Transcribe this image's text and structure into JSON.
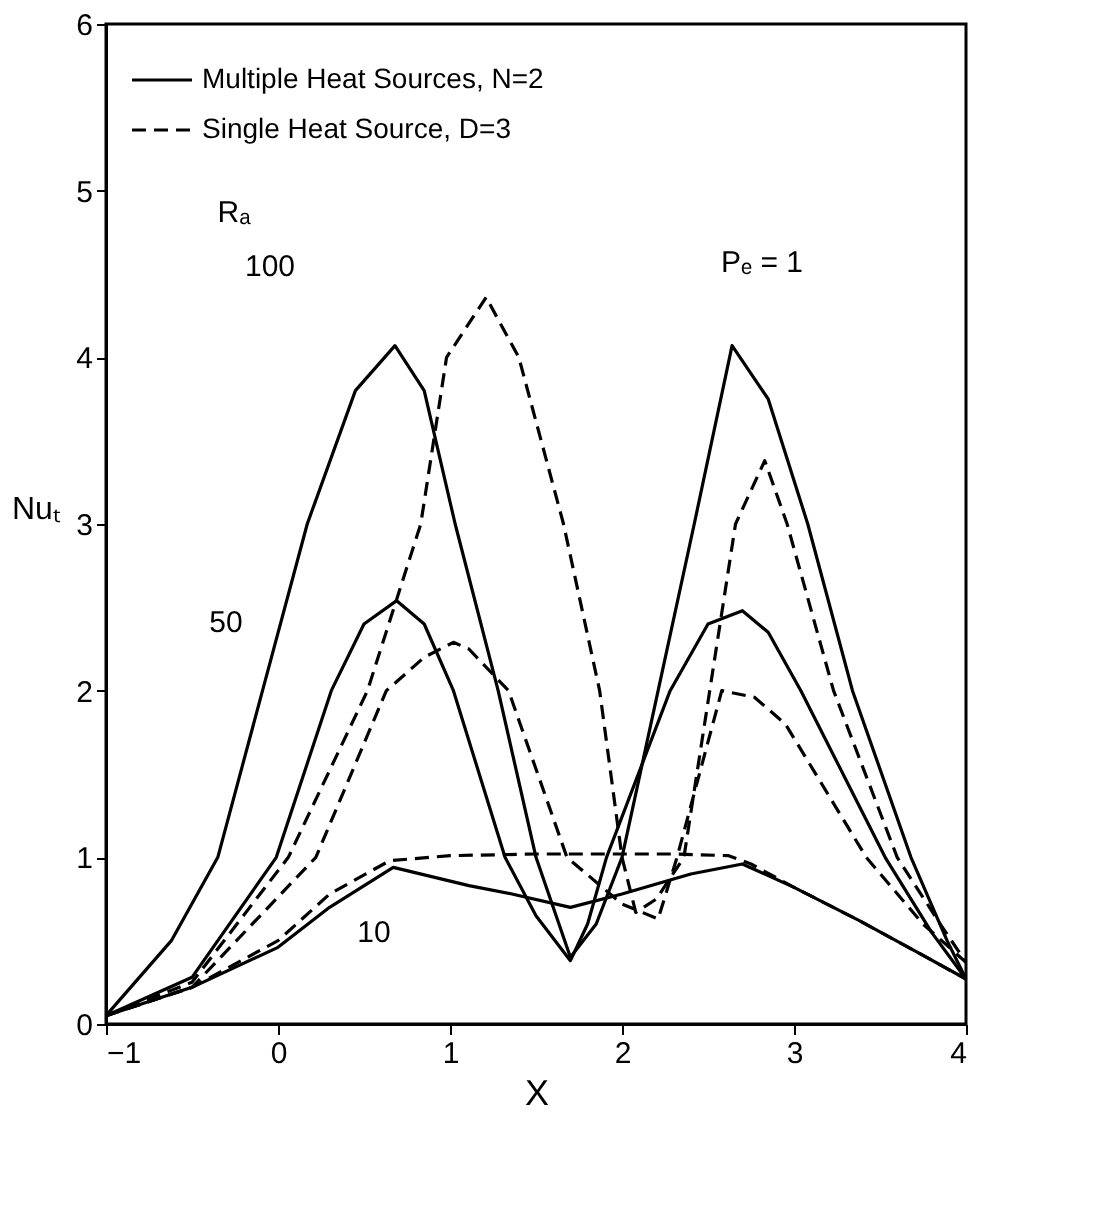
{
  "chart_data": {
    "type": "line",
    "xlabel": "X",
    "ylabel": "Nuₜ",
    "xlim": [
      -1,
      4
    ],
    "ylim": [
      0,
      6
    ],
    "xticks": [
      -1,
      0,
      1,
      2,
      3,
      4
    ],
    "yticks": [
      0,
      1,
      2,
      3,
      4,
      5,
      6
    ],
    "grid": false,
    "legend": "top left",
    "marker": "none",
    "series": [
      {
        "name": "Multiple Heat Sources, N=2",
        "color": "#000000",
        "line_style": "solid",
        "x": [
          -1,
          -0.62,
          -0.35,
          -0.09,
          0.17,
          0.45,
          0.68,
          0.85,
          1.03,
          1.28,
          1.5,
          1.7,
          1.85,
          2.0,
          2.21,
          2.42,
          2.64,
          2.85,
          3.08,
          3.34,
          3.68,
          3.89,
          4
        ],
        "values": [
          0.05,
          0.5,
          1.0,
          2.0,
          3.0,
          3.8,
          4.07,
          3.8,
          3.0,
          2.0,
          1.0,
          0.4,
          0.6,
          1.0,
          2.0,
          3.0,
          4.07,
          3.75,
          3.0,
          2.0,
          1.0,
          0.5,
          0.27
        ]
      },
      {
        "color": "#000000",
        "line_style": "solid",
        "x": [
          -1,
          -0.5,
          -0.01,
          0.31,
          0.5,
          0.69,
          0.85,
          1.02,
          1.32,
          1.5,
          1.7,
          1.8,
          1.91,
          2.28,
          2.5,
          2.7,
          2.85,
          3.04,
          3.53,
          3.8,
          4
        ],
        "values": [
          0.05,
          0.28,
          1.0,
          2.0,
          2.4,
          2.54,
          2.4,
          2.0,
          1.0,
          0.65,
          0.38,
          0.6,
          1.0,
          2.0,
          2.4,
          2.48,
          2.35,
          2.0,
          1.0,
          0.55,
          0.27
        ]
      },
      {
        "color": "#000000",
        "line_style": "solid",
        "x": [
          -1,
          -0.5,
          0,
          0.3,
          0.67,
          1.11,
          1.36,
          1.7,
          2.0,
          2.4,
          2.7,
          3.0,
          3.38,
          3.7,
          4
        ],
        "values": [
          0.05,
          0.22,
          0.46,
          0.7,
          0.94,
          0.83,
          0.78,
          0.7,
          0.78,
          0.9,
          0.96,
          0.82,
          0.62,
          0.44,
          0.27
        ]
      },
      {
        "name": "Single Heat Source, D=3",
        "color": "#000000",
        "line_style": "dashed",
        "x": [
          -1,
          -0.5,
          0.06,
          0.52,
          0.83,
          0.98,
          1.21,
          1.4,
          1.66,
          1.87,
          2.0,
          2.08,
          2.2,
          2.36,
          2.51,
          2.66,
          2.83,
          2.96,
          3.23,
          3.6,
          3.85,
          4
        ],
        "values": [
          0.05,
          0.25,
          1.0,
          2.0,
          3.0,
          4.0,
          4.36,
          4.0,
          3.0,
          2.0,
          1.0,
          0.67,
          0.75,
          1.0,
          2.0,
          3.0,
          3.38,
          3.0,
          2.0,
          1.0,
          0.6,
          0.37
        ]
      },
      {
        "color": "#000000",
        "line_style": "dashed",
        "x": [
          -1,
          -0.5,
          0.22,
          0.63,
          0.85,
          1.02,
          1.11,
          1.34,
          1.68,
          2.0,
          2.21,
          2.32,
          2.58,
          2.77,
          2.95,
          3.42,
          3.75,
          4
        ],
        "values": [
          0.05,
          0.22,
          1.0,
          2.0,
          2.2,
          2.29,
          2.25,
          2.0,
          1.0,
          0.72,
          0.63,
          1.0,
          2.0,
          1.96,
          1.8,
          1.0,
          0.6,
          0.37
        ]
      },
      {
        "color": "#000000",
        "line_style": "dashed",
        "x": [
          -1,
          -0.5,
          0,
          0.3,
          0.65,
          1.0,
          1.5,
          2.0,
          2.3,
          2.62,
          2.75,
          3.0,
          3.38,
          3.7,
          4
        ],
        "values": [
          0.05,
          0.22,
          0.5,
          0.78,
          0.98,
          1.01,
          1.02,
          1.02,
          1.02,
          1.01,
          0.96,
          0.82,
          0.62,
          0.44,
          0.27
        ]
      }
    ],
    "annotations": [
      "Rₐ",
      "100",
      "50",
      "10",
      "Pₑ = 1"
    ]
  }
}
